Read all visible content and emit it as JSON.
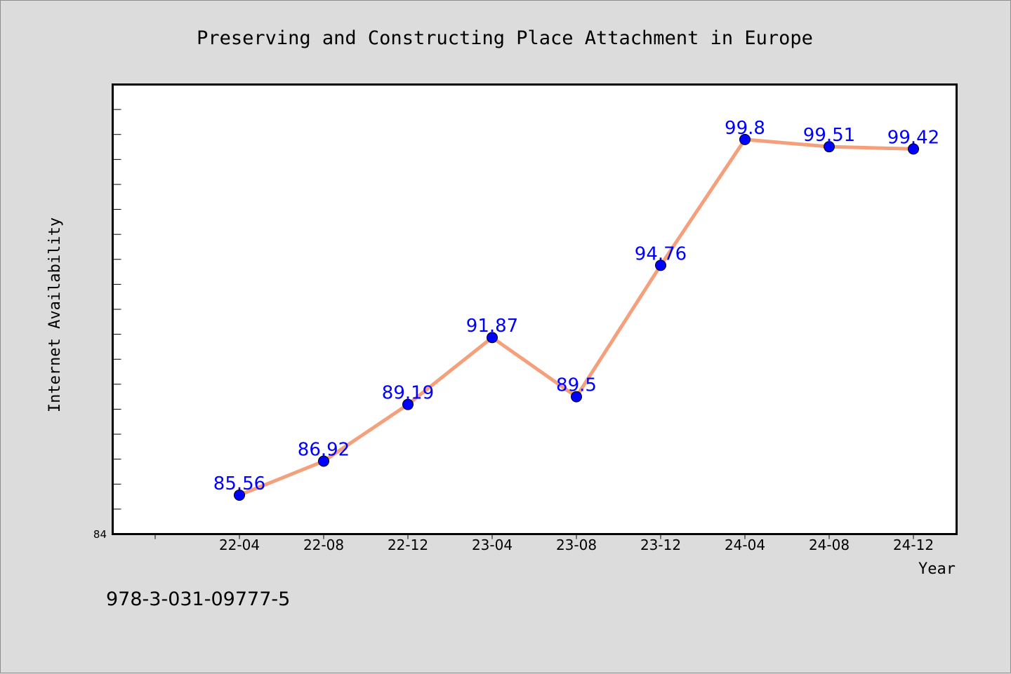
{
  "footer": "978-3-031-09777-5",
  "chart_data": {
    "type": "line",
    "title": "Preserving and Constructing Place Attachment in Europe",
    "xlabel": "Year",
    "ylabel": "Internet Availability",
    "categories": [
      "22-04",
      "22-08",
      "22-12",
      "23-04",
      "23-08",
      "23-12",
      "24-04",
      "24-08",
      "24-12"
    ],
    "series": [
      {
        "values": [
          85.56,
          86.92,
          89.19,
          91.87,
          89.5,
          94.76,
          99.8,
          99.51,
          99.42
        ],
        "labels": [
          "85.56",
          "86.92",
          "89.19",
          "91.87",
          "89.5",
          "94.76",
          "99.8",
          "99.51",
          "99.42"
        ]
      }
    ],
    "y_tick_labels": [
      "84"
    ],
    "ylim": [
      84,
      102
    ],
    "grid": false,
    "legend": "none",
    "colors": {
      "line": "#f4a07c",
      "marker": "#0000ff",
      "label": "#0000ff",
      "plot_background": "#ffffff",
      "page_background": "#dcdcdc"
    }
  }
}
